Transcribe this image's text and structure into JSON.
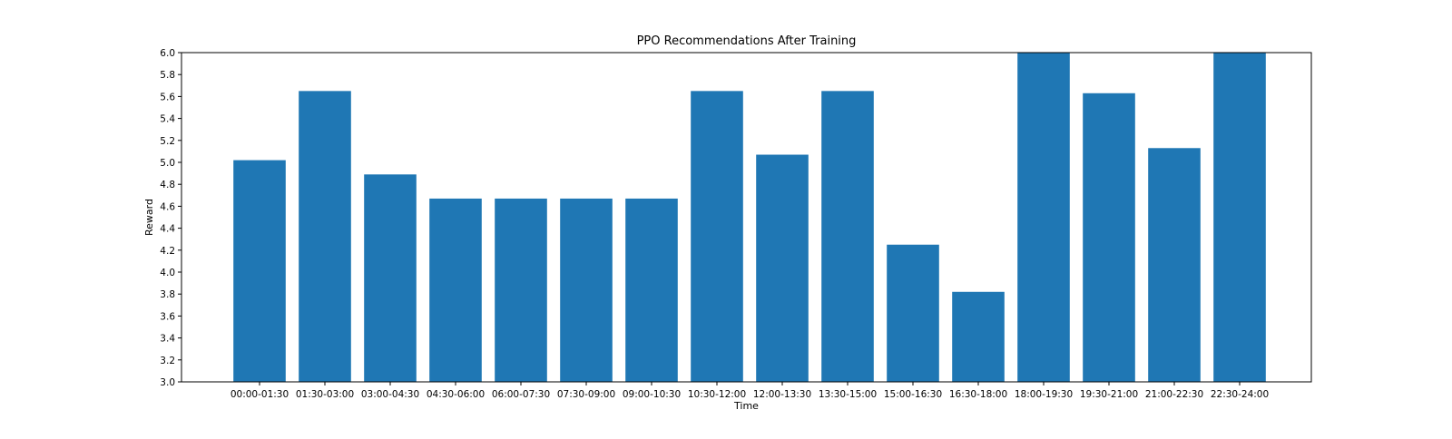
{
  "chart_data": {
    "type": "bar",
    "title": "PPO Recommendations After Training",
    "xlabel": "Time",
    "ylabel": "Reward",
    "ylim": [
      3.0,
      6.0
    ],
    "yticks": [
      "3.0",
      "3.2",
      "3.4",
      "3.6",
      "3.8",
      "4.0",
      "4.2",
      "4.4",
      "4.6",
      "4.8",
      "5.0",
      "5.2",
      "5.4",
      "5.6",
      "5.8",
      "6.0"
    ],
    "categories": [
      "00:00-01:30",
      "01:30-03:00",
      "03:00-04:30",
      "04:30-06:00",
      "06:00-07:30",
      "07:30-09:00",
      "09:00-10:30",
      "10:30-12:00",
      "12:00-13:30",
      "13:30-15:00",
      "15:00-16:30",
      "16:30-18:00",
      "18:00-19:30",
      "19:30-21:00",
      "21:00-22:30",
      "22:30-24:00"
    ],
    "values": [
      5.02,
      5.65,
      4.89,
      4.67,
      4.67,
      4.67,
      4.67,
      5.65,
      5.07,
      5.65,
      4.25,
      3.82,
      6.0,
      5.63,
      5.13,
      6.0
    ],
    "bar_color": "#1f77b4",
    "grid": false,
    "legend": "none"
  }
}
